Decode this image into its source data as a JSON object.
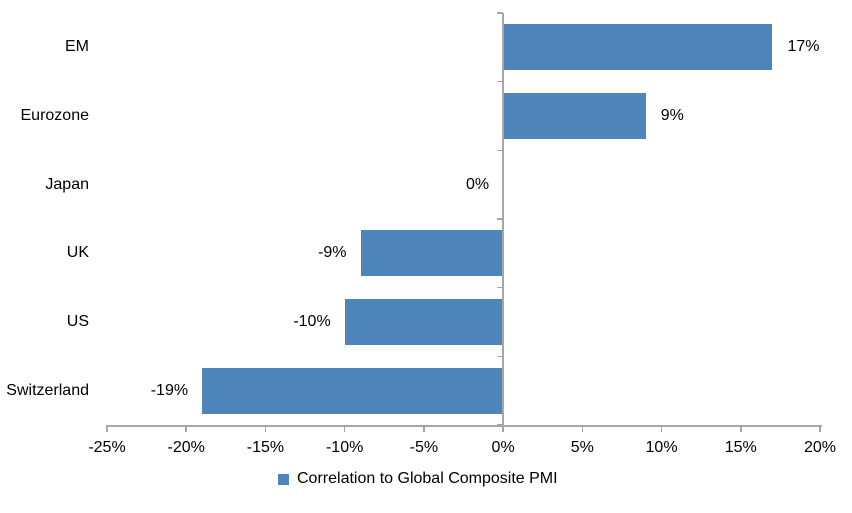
{
  "chart_data": {
    "type": "bar",
    "orientation": "horizontal",
    "title": "",
    "xlabel": "",
    "ylabel": "",
    "categories": [
      "EM",
      "Eurozone",
      "Japan",
      "UK",
      "US",
      "Switzerland"
    ],
    "series": [
      {
        "name": "Correlation to Global Composite PMI",
        "values": [
          17,
          9,
          0,
          -9,
          -10,
          -19
        ],
        "value_labels": [
          "17%",
          "9%",
          "0%",
          "-9%",
          "-10%",
          "-19%"
        ]
      }
    ],
    "xlim": [
      -25,
      20
    ],
    "x_ticks": [
      -25,
      -20,
      -15,
      -10,
      -5,
      0,
      5,
      10,
      15,
      20
    ],
    "x_tick_labels": [
      "-25%",
      "-20%",
      "-15%",
      "-10%",
      "-5%",
      "0%",
      "5%",
      "10%",
      "15%",
      "20%"
    ],
    "grid": false,
    "legend_position": "bottom",
    "colors": {
      "bar": "#4E86BC",
      "axis": "#A6A6A6",
      "text": "#000000",
      "background": "#FFFFFF"
    }
  },
  "legend": {
    "label": "Correlation to Global Composite PMI"
  }
}
